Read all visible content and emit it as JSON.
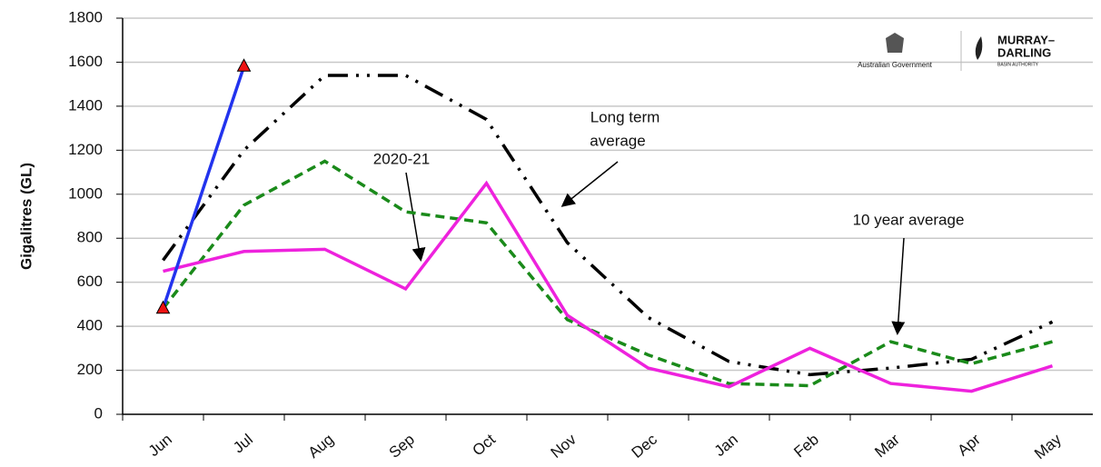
{
  "chart_data": {
    "type": "line",
    "y_label": "Gigalitres (GL)",
    "categories": [
      "Jun",
      "Jul",
      "Aug",
      "Sep",
      "Oct",
      "Nov",
      "Dec",
      "Jan",
      "Feb",
      "Mar",
      "Apr",
      "May"
    ],
    "series": [
      {
        "color": "#000000",
        "dash": "dash-dot-dot",
        "values": [
          700,
          1200,
          1540,
          1540,
          1340,
          780,
          440,
          240,
          180,
          210,
          250,
          420
        ]
      },
      {
        "color": "#1a8a1a",
        "dash": "dashed",
        "values": [
          480,
          950,
          1150,
          920,
          870,
          430,
          270,
          140,
          130,
          330,
          230,
          330
        ]
      },
      {
        "color": "#ee22dd",
        "dash": "solid",
        "values": [
          650,
          740,
          750,
          570,
          1050,
          450,
          210,
          125,
          300,
          140,
          105,
          220
        ]
      },
      {
        "color": "#2233ee",
        "dash": "solid",
        "marker": "triangle",
        "marker_color": "#ee1111",
        "values": [
          480,
          1580,
          null,
          null,
          null,
          null,
          null,
          null,
          null,
          null,
          null,
          null
        ]
      }
    ],
    "ylim": [
      0,
      1800
    ],
    "yticks": [
      0,
      200,
      400,
      600,
      800,
      1000,
      1200,
      1400,
      1600,
      1800
    ],
    "grid": true,
    "annotations": [
      {
        "lines": [
          "Long term",
          "average"
        ]
      },
      {
        "lines": [
          "2020-21"
        ]
      },
      {
        "lines": [
          "10 year average"
        ]
      }
    ],
    "logo": {
      "government": "Australian Government",
      "authority": [
        "MURRAY–",
        "DARLING"
      ],
      "sub": "BASIN AUTHORITY"
    }
  }
}
